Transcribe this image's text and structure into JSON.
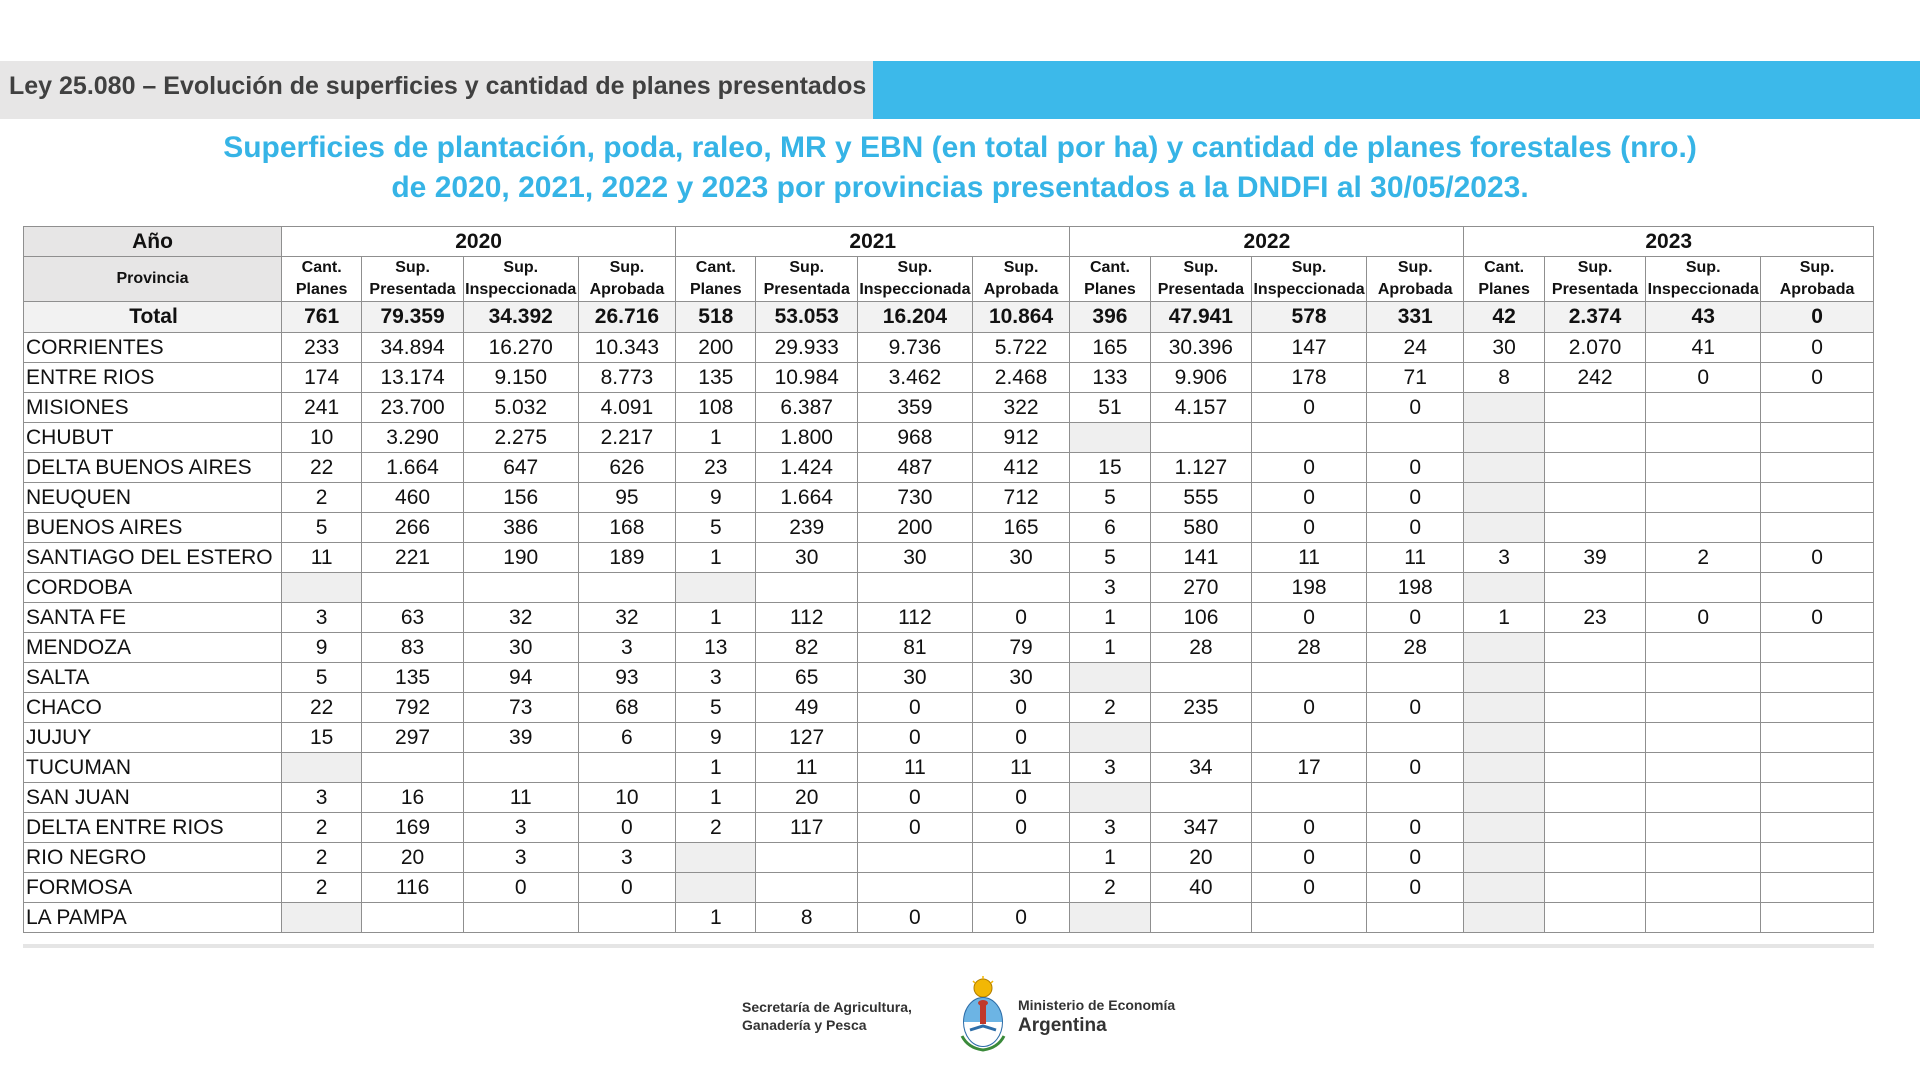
{
  "header": {
    "title": "Ley 25.080 – Evolución de superficies y cantidad de planes presentados"
  },
  "subtitle": {
    "line1": "Superficies de plantación, poda, raleo, MR y EBN (en total por ha) y cantidad de planes forestales (nro.)",
    "line2": "de 2020, 2021, 2022 y 2023 por provincias presentados a la DNDFI al 30/05/2023."
  },
  "table": {
    "year_label": "Año",
    "province_label": "Provincia",
    "years": [
      "2020",
      "2021",
      "2022",
      "2023"
    ],
    "subheaders": [
      [
        "Cant.",
        "Planes"
      ],
      [
        "Sup.",
        "Presentada"
      ],
      [
        "Sup.",
        "Inspeccionada"
      ],
      [
        "Sup.",
        "Aprobada"
      ]
    ],
    "total": {
      "label": "Total",
      "values": [
        "761",
        "79.359",
        "34.392",
        "26.716",
        "518",
        "53.053",
        "16.204",
        "10.864",
        "396",
        "47.941",
        "578",
        "331",
        "42",
        "2.374",
        "43",
        "0"
      ]
    },
    "rows": [
      {
        "province": "CORRIENTES",
        "values": [
          "233",
          "34.894",
          "16.270",
          "10.343",
          "200",
          "29.933",
          "9.736",
          "5.722",
          "165",
          "30.396",
          "147",
          "24",
          "30",
          "2.070",
          "41",
          "0"
        ]
      },
      {
        "province": "ENTRE RIOS",
        "values": [
          "174",
          "13.174",
          "9.150",
          "8.773",
          "135",
          "10.984",
          "3.462",
          "2.468",
          "133",
          "9.906",
          "178",
          "71",
          "8",
          "242",
          "0",
          "0"
        ]
      },
      {
        "province": "MISIONES",
        "values": [
          "241",
          "23.700",
          "5.032",
          "4.091",
          "108",
          "6.387",
          "359",
          "322",
          "51",
          "4.157",
          "0",
          "0",
          "",
          "",
          "",
          ""
        ]
      },
      {
        "province": "CHUBUT",
        "values": [
          "10",
          "3.290",
          "2.275",
          "2.217",
          "1",
          "1.800",
          "968",
          "912",
          "",
          "",
          "",
          "",
          "",
          "",
          "",
          ""
        ]
      },
      {
        "province": "DELTA BUENOS AIRES",
        "values": [
          "22",
          "1.664",
          "647",
          "626",
          "23",
          "1.424",
          "487",
          "412",
          "15",
          "1.127",
          "0",
          "0",
          "",
          "",
          "",
          ""
        ]
      },
      {
        "province": "NEUQUEN",
        "values": [
          "2",
          "460",
          "156",
          "95",
          "9",
          "1.664",
          "730",
          "712",
          "5",
          "555",
          "0",
          "0",
          "",
          "",
          "",
          ""
        ]
      },
      {
        "province": "BUENOS AIRES",
        "values": [
          "5",
          "266",
          "386",
          "168",
          "5",
          "239",
          "200",
          "165",
          "6",
          "580",
          "0",
          "0",
          "",
          "",
          "",
          ""
        ]
      },
      {
        "province": "SANTIAGO DEL ESTERO",
        "values": [
          "11",
          "221",
          "190",
          "189",
          "1",
          "30",
          "30",
          "30",
          "5",
          "141",
          "11",
          "11",
          "3",
          "39",
          "2",
          "0"
        ]
      },
      {
        "province": "CORDOBA",
        "values": [
          "",
          "",
          "",
          "",
          "",
          "",
          "",
          "",
          "3",
          "270",
          "198",
          "198",
          "",
          "",
          "",
          ""
        ]
      },
      {
        "province": "SANTA FE",
        "values": [
          "3",
          "63",
          "32",
          "32",
          "1",
          "112",
          "112",
          "0",
          "1",
          "106",
          "0",
          "0",
          "1",
          "23",
          "0",
          "0"
        ]
      },
      {
        "province": "MENDOZA",
        "values": [
          "9",
          "83",
          "30",
          "3",
          "13",
          "82",
          "81",
          "79",
          "1",
          "28",
          "28",
          "28",
          "",
          "",
          "",
          ""
        ]
      },
      {
        "province": "SALTA",
        "values": [
          "5",
          "135",
          "94",
          "93",
          "3",
          "65",
          "30",
          "30",
          "",
          "",
          "",
          "",
          "",
          "",
          "",
          ""
        ]
      },
      {
        "province": "CHACO",
        "values": [
          "22",
          "792",
          "73",
          "68",
          "5",
          "49",
          "0",
          "0",
          "2",
          "235",
          "0",
          "0",
          "",
          "",
          "",
          ""
        ]
      },
      {
        "province": "JUJUY",
        "values": [
          "15",
          "297",
          "39",
          "6",
          "9",
          "127",
          "0",
          "0",
          "",
          "",
          "",
          "",
          "",
          "",
          "",
          ""
        ]
      },
      {
        "province": "TUCUMAN",
        "values": [
          "",
          "",
          "",
          "",
          "1",
          "11",
          "11",
          "11",
          "3",
          "34",
          "17",
          "0",
          "",
          "",
          "",
          ""
        ]
      },
      {
        "province": "SAN JUAN",
        "values": [
          "3",
          "16",
          "11",
          "10",
          "1",
          "20",
          "0",
          "0",
          "",
          "",
          "",
          "",
          "",
          "",
          "",
          ""
        ]
      },
      {
        "province": "DELTA ENTRE RIOS",
        "values": [
          "2",
          "169",
          "3",
          "0",
          "2",
          "117",
          "0",
          "0",
          "3",
          "347",
          "0",
          "0",
          "",
          "",
          "",
          ""
        ]
      },
      {
        "province": "RIO NEGRO",
        "values": [
          "2",
          "20",
          "3",
          "3",
          "",
          "",
          "",
          "",
          "1",
          "20",
          "0",
          "0",
          "",
          "",
          "",
          ""
        ]
      },
      {
        "province": "FORMOSA",
        "values": [
          "2",
          "116",
          "0",
          "0",
          "",
          "",
          "",
          "",
          "2",
          "40",
          "0",
          "0",
          "",
          "",
          "",
          ""
        ]
      },
      {
        "province": "LA PAMPA",
        "values": [
          "",
          "",
          "",
          "",
          "1",
          "8",
          "0",
          "0",
          "",
          "",
          "",
          "",
          "",
          "",
          "",
          ""
        ]
      }
    ]
  },
  "footer": {
    "secretaria_line1": "Secretaría de Agricultura,",
    "secretaria_line2": "Ganadería y Pesca",
    "ministerio_line1": "Ministerio de Economía",
    "ministerio_line2": "Argentina"
  },
  "colors": {
    "accent_blue": "#3cb9ea",
    "subtitle_blue": "#36b4e6",
    "band_gray": "#e7e6e6"
  }
}
